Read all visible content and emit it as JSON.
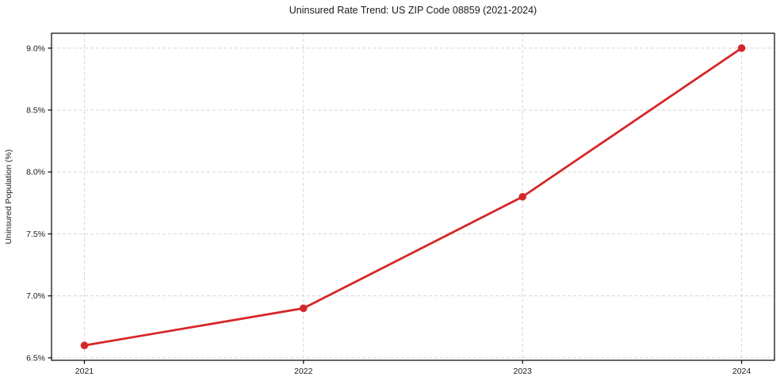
{
  "chart_data": {
    "type": "line",
    "title": "Uninsured Rate Trend: US ZIP Code 08859 (2021-2024)",
    "xlabel": "",
    "ylabel": "Uninsured Population (%)",
    "x": [
      2021,
      2022,
      2023,
      2024
    ],
    "series": [
      {
        "name": "Uninsured rate",
        "values": [
          6.6,
          6.9,
          7.8,
          9.0
        ],
        "color": "#d62728",
        "marker": "circle",
        "line_width": 2.8,
        "marker_radius": 4.8
      }
    ],
    "xlim": [
      2020.85,
      2024.15
    ],
    "ylim": [
      6.48,
      9.12
    ],
    "xticks": {
      "values": [
        2021,
        2022,
        2023,
        2024
      ],
      "labels": [
        "2021",
        "2022",
        "2023",
        "2024"
      ]
    },
    "yticks": {
      "values": [
        6.5,
        7.0,
        7.5,
        8.0,
        8.5,
        9.0
      ],
      "labels": [
        "6.5%",
        "7.0%",
        "7.5%",
        "8.0%",
        "8.5%",
        "9.0%"
      ]
    },
    "grid": {
      "visible": true,
      "style": "dashed",
      "color": "#d6d6d6"
    },
    "legend": "none",
    "axis_color": "#000000",
    "text_color": "#1a1a1a"
  }
}
